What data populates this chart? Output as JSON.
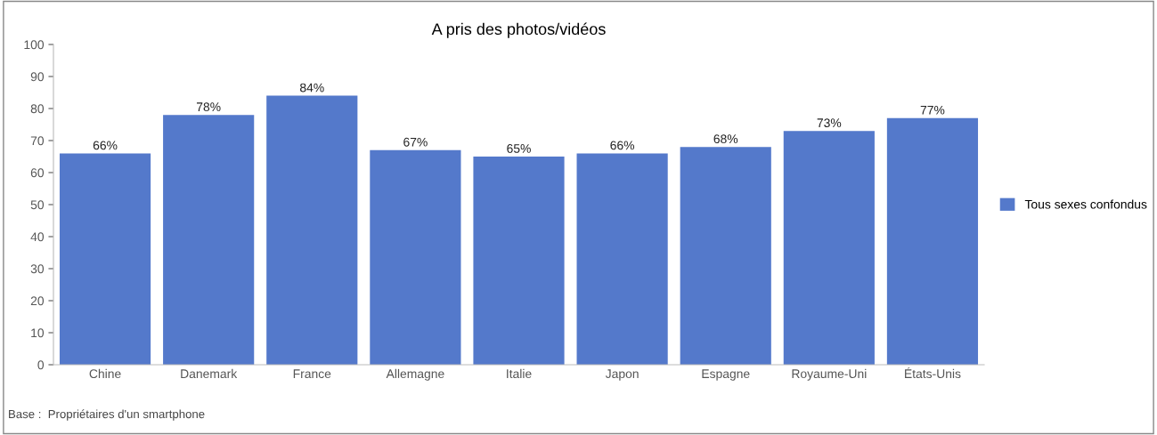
{
  "chart_data": {
    "type": "bar",
    "title": "A pris des photos/vidéos",
    "categories": [
      "Chine",
      "Danemark",
      "France",
      "Allemagne",
      "Italie",
      "Japon",
      "Espagne",
      "Royaume-Uni",
      "États-Unis"
    ],
    "series": [
      {
        "name": "Tous sexes confondus",
        "color": "#5479cb",
        "values": [
          66,
          78,
          84,
          67,
          65,
          66,
          68,
          73,
          77
        ],
        "value_labels": [
          "66%",
          "78%",
          "84%",
          "67%",
          "65%",
          "66%",
          "68%",
          "73%",
          "77%"
        ]
      }
    ],
    "ylim": [
      0,
      100
    ],
    "yticks": [
      0,
      10,
      20,
      30,
      40,
      50,
      60,
      70,
      80,
      90,
      100
    ],
    "grid": false,
    "legend": "right",
    "annotations": [
      "Base :  Propriétaires d'un smartphone"
    ]
  }
}
